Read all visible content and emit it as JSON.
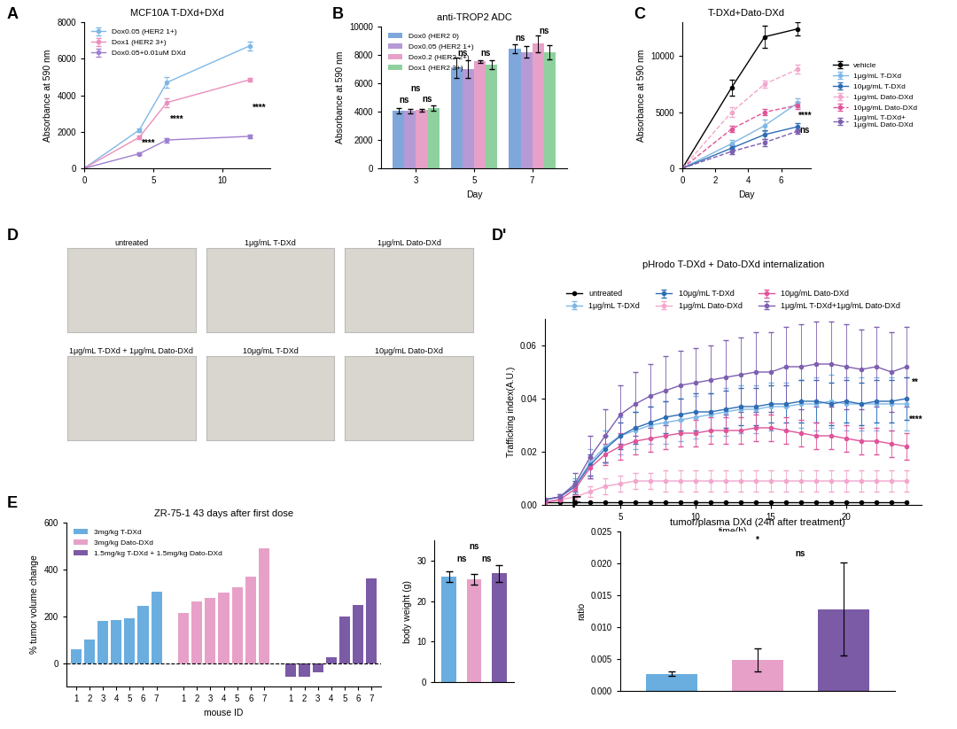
{
  "chart_data": [
    {
      "panel": "A",
      "type": "line",
      "title": "MCF10A T-DXd+DXd",
      "y_label": "Absorbance at 590 nm",
      "x": [
        0,
        4,
        6,
        12
      ],
      "xlim": [
        0,
        13.5
      ],
      "xticks": [
        0,
        5,
        10
      ],
      "ylim": [
        0,
        8000
      ],
      "yticks": [
        0,
        2000,
        4000,
        6000,
        8000
      ],
      "legend": "upper left",
      "series": [
        {
          "name": "Dox0.05 (HER2 1+)",
          "color": "#7fb8e6",
          "marker": "o",
          "line_style": "solid",
          "values": [
            0,
            2100,
            4700,
            6700
          ],
          "errors": [
            0,
            100,
            300,
            250
          ]
        },
        {
          "name": "Dox1 (HER2 3+)",
          "color": "#ea8fbd",
          "marker": "o",
          "line_style": "solid",
          "values": [
            0,
            1700,
            3600,
            4850
          ],
          "errors": [
            0,
            80,
            250,
            80
          ]
        },
        {
          "name": "Dox0.05+0.01uM DXd",
          "color": "#a07fd0",
          "marker": "o",
          "line_style": "solid",
          "values": [
            0,
            800,
            1550,
            1750
          ],
          "errors": [
            0,
            60,
            120,
            80
          ]
        }
      ],
      "annotations": [
        {
          "text": "****",
          "x": 4.7,
          "y": 1350
        },
        {
          "text": "****",
          "x": 6.7,
          "y": 2650
        },
        {
          "text": "****",
          "x": 12.7,
          "y": 3300
        }
      ]
    },
    {
      "panel": "B",
      "type": "grouped_bar",
      "title": "anti-TROP2 ADC",
      "x_label": "Day",
      "y_label": "Absorbance at 590 nm",
      "categories": [
        "3",
        "5",
        "7"
      ],
      "ylim": [
        0,
        10000
      ],
      "yticks": [
        0,
        2000,
        4000,
        6000,
        8000,
        10000
      ],
      "legend": "upper left",
      "series": [
        {
          "name": "Dox0 (HER2 0)",
          "color": "#7fa7dc",
          "values": [
            4050,
            7100,
            8450
          ],
          "errors": [
            200,
            700,
            300
          ]
        },
        {
          "name": "Dox0.05 (HER2 1+)",
          "color": "#b59ad6",
          "values": [
            4050,
            7000,
            8200
          ],
          "errors": [
            150,
            600,
            400
          ]
        },
        {
          "name": "Dox0.2 (HER2 2+)",
          "color": "#e7a1c8",
          "values": [
            4100,
            7550,
            8800
          ],
          "errors": [
            100,
            100,
            600
          ]
        },
        {
          "name": "Dox1 (HER2 3+)",
          "color": "#8fd19e",
          "values": [
            4250,
            7300,
            8200
          ],
          "errors": [
            200,
            300,
            500
          ]
        }
      ],
      "annotations": [
        {
          "text": "ns",
          "x": -0.2,
          "y": 4800
        },
        {
          "text": "ns",
          "x": 0.2,
          "y": 4900
        },
        {
          "text": "ns",
          "x": 0.0,
          "y": 5600
        },
        {
          "text": "ns",
          "x": 0.8,
          "y": 8100
        },
        {
          "text": "ns",
          "x": 1.2,
          "y": 8100
        },
        {
          "text": "ns",
          "x": 1.8,
          "y": 9200
        },
        {
          "text": "ns",
          "x": 2.2,
          "y": 9700
        }
      ]
    },
    {
      "panel": "C",
      "type": "line",
      "title": "T-DXd+Dato-DXd",
      "x_label": "Day",
      "y_label": "Absorbance at 590 nm",
      "x": [
        0,
        3,
        5,
        7
      ],
      "xlim": [
        0,
        7.8
      ],
      "xticks": [
        0,
        2,
        4,
        6
      ],
      "ylim": [
        0,
        13000
      ],
      "yticks": [
        0,
        5000,
        10000
      ],
      "legend": "right",
      "series": [
        {
          "name": "vehicle",
          "color": "#000000",
          "marker": "o",
          "line_style": "solid",
          "values": [
            0,
            7200,
            11700,
            12400
          ],
          "errors": [
            0,
            700,
            1000,
            600
          ]
        },
        {
          "name": "1μg/mL T-DXd",
          "color": "#7fb8e6",
          "marker": "o",
          "line_style": "solid",
          "values": [
            0,
            2200,
            3800,
            5800
          ],
          "errors": [
            0,
            300,
            500,
            400
          ]
        },
        {
          "name": "10μg/mL T-DXd",
          "color": "#2f6db5",
          "marker": "o",
          "line_style": "solid",
          "values": [
            0,
            1800,
            3000,
            3700
          ],
          "errors": [
            0,
            250,
            400,
            300
          ]
        },
        {
          "name": "1μg/mL Dato-DXd",
          "color": "#f2a7cc",
          "marker": "o",
          "line_style": "dashed",
          "values": [
            0,
            5000,
            7500,
            8800
          ],
          "errors": [
            0,
            400,
            300,
            400
          ]
        },
        {
          "name": "10μg/mL Dato-DXd",
          "color": "#e0559a",
          "marker": "o",
          "line_style": "dashed",
          "values": [
            0,
            3500,
            5000,
            5600
          ],
          "errors": [
            0,
            300,
            300,
            300
          ]
        },
        {
          "name": "1μg/mL T-DXd+\n1μg/mL Dato-DXd",
          "color": "#7e5fb0",
          "marker": "o",
          "line_style": "dashed",
          "values": [
            0,
            1500,
            2300,
            3300
          ],
          "errors": [
            0,
            200,
            300,
            200
          ]
        }
      ],
      "annotations": [
        {
          "text": "****",
          "x": 7.45,
          "y": 4700
        },
        {
          "text": "ns",
          "x": 7.45,
          "y": 3400
        }
      ]
    },
    {
      "panel": "D",
      "type": "images",
      "titles": [
        "untreated",
        "1μg/mL T-DXd",
        "1μg/mL Dato-DXd",
        "1μg/mL T-DXd + 1μg/mL Dato-DXd",
        "10μg/mL T-DXd",
        "10μg/mL Dato-DXd"
      ]
    },
    {
      "panel": "D'",
      "type": "line",
      "title": "pHrodo T-DXd + Dato-DXd internalization",
      "x_label": "time(h)",
      "y_label": "Trafficking index(A.U.)",
      "x": [
        0,
        1,
        2,
        3,
        4,
        5,
        6,
        7,
        8,
        9,
        10,
        11,
        12,
        13,
        14,
        15,
        16,
        17,
        18,
        19,
        20,
        21,
        22,
        23,
        24
      ],
      "xlim": [
        0,
        25
      ],
      "xticks": [
        5,
        10,
        15,
        20
      ],
      "ylim": [
        0,
        0.07
      ],
      "yticks": [
        {
          "value": 0,
          "label": "0.00"
        },
        {
          "value": 0.02,
          "label": "0.02"
        },
        {
          "value": 0.04,
          "label": "0.04"
        },
        {
          "value": 0.06,
          "label": "0.06"
        }
      ],
      "legend": "top",
      "series": [
        {
          "name": "untreated",
          "color": "#000000",
          "marker": "o",
          "line_style": "solid",
          "values": [
            0.001,
            0.001,
            0.001,
            0.001,
            0.001,
            0.001,
            0.001,
            0.001,
            0.001,
            0.001,
            0.001,
            0.001,
            0.001,
            0.001,
            0.001,
            0.001,
            0.001,
            0.001,
            0.001,
            0.001,
            0.001,
            0.001,
            0.001,
            0.001,
            0.001
          ]
        },
        {
          "name": "1μg/mL T-DXd",
          "color": "#7fb8e6",
          "marker": "o",
          "line_style": "solid",
          "values": [
            0.002,
            0.003,
            0.007,
            0.016,
            0.022,
            0.026,
            0.028,
            0.03,
            0.031,
            0.032,
            0.033,
            0.034,
            0.035,
            0.036,
            0.036,
            0.037,
            0.037,
            0.038,
            0.038,
            0.039,
            0.038,
            0.038,
            0.038,
            0.038,
            0.038
          ],
          "errors": [
            0,
            0.001,
            0.003,
            0.005,
            0.006,
            0.007,
            0.007,
            0.007,
            0.008,
            0.008,
            0.008,
            0.008,
            0.009,
            0.009,
            0.009,
            0.009,
            0.009,
            0.009,
            0.01,
            0.01,
            0.01,
            0.01,
            0.01,
            0.01,
            0.01
          ]
        },
        {
          "name": "10μg/mL T-DXd",
          "color": "#2f6db5",
          "marker": "o",
          "line_style": "solid",
          "values": [
            0.002,
            0.003,
            0.007,
            0.015,
            0.021,
            0.026,
            0.029,
            0.031,
            0.033,
            0.034,
            0.035,
            0.035,
            0.036,
            0.037,
            0.037,
            0.038,
            0.038,
            0.039,
            0.039,
            0.038,
            0.039,
            0.038,
            0.039,
            0.039,
            0.04
          ],
          "errors": [
            0,
            0.001,
            0.002,
            0.004,
            0.005,
            0.005,
            0.006,
            0.006,
            0.006,
            0.006,
            0.007,
            0.007,
            0.007,
            0.007,
            0.007,
            0.007,
            0.007,
            0.008,
            0.008,
            0.008,
            0.008,
            0.008,
            0.008,
            0.008,
            0.008
          ]
        },
        {
          "name": "1μg/mL Dato-DXd",
          "color": "#f2a7cc",
          "marker": "o",
          "line_style": "solid",
          "values": [
            0.001,
            0.002,
            0.003,
            0.005,
            0.007,
            0.008,
            0.009,
            0.009,
            0.009,
            0.009,
            0.009,
            0.009,
            0.009,
            0.009,
            0.009,
            0.009,
            0.009,
            0.009,
            0.009,
            0.009,
            0.009,
            0.009,
            0.009,
            0.009,
            0.009
          ],
          "errors": [
            0,
            0.001,
            0.001,
            0.002,
            0.003,
            0.003,
            0.003,
            0.003,
            0.004,
            0.004,
            0.004,
            0.004,
            0.004,
            0.004,
            0.004,
            0.004,
            0.004,
            0.004,
            0.004,
            0.004,
            0.004,
            0.004,
            0.004,
            0.004,
            0.004
          ]
        },
        {
          "name": "10μg/mL Dato-DXd",
          "color": "#e0559a",
          "marker": "o",
          "line_style": "solid",
          "values": [
            0.001,
            0.002,
            0.006,
            0.014,
            0.019,
            0.022,
            0.024,
            0.025,
            0.026,
            0.027,
            0.027,
            0.028,
            0.028,
            0.028,
            0.029,
            0.029,
            0.028,
            0.027,
            0.026,
            0.026,
            0.025,
            0.024,
            0.024,
            0.023,
            0.022
          ],
          "errors": [
            0,
            0.001,
            0.002,
            0.004,
            0.004,
            0.005,
            0.005,
            0.005,
            0.005,
            0.005,
            0.005,
            0.005,
            0.005,
            0.005,
            0.005,
            0.005,
            0.005,
            0.005,
            0.005,
            0.005,
            0.005,
            0.005,
            0.005,
            0.005,
            0.005
          ]
        },
        {
          "name": "1μg/mL T-DXd+1μg/mL Dato-DXd",
          "color": "#7e5fb0",
          "marker": "o",
          "line_style": "solid",
          "values": [
            0.002,
            0.003,
            0.008,
            0.018,
            0.026,
            0.034,
            0.038,
            0.041,
            0.043,
            0.045,
            0.046,
            0.047,
            0.048,
            0.049,
            0.05,
            0.05,
            0.052,
            0.052,
            0.053,
            0.053,
            0.052,
            0.051,
            0.052,
            0.05,
            0.052
          ],
          "errors": [
            0,
            0.001,
            0.004,
            0.008,
            0.01,
            0.011,
            0.012,
            0.012,
            0.013,
            0.013,
            0.013,
            0.013,
            0.014,
            0.014,
            0.015,
            0.015,
            0.015,
            0.016,
            0.016,
            0.016,
            0.016,
            0.015,
            0.015,
            0.015,
            0.015
          ]
        }
      ],
      "annotations": [
        {
          "text": "**",
          "x": 24.6,
          "y": 0.046
        },
        {
          "text": "****",
          "x": 24.6,
          "y": 0.032
        }
      ]
    },
    {
      "panel": "E",
      "type": "waterfall",
      "title": "ZR-75-1 43 days after first dose",
      "x_label": "mouse ID",
      "y_label": "% tumor volume change",
      "categories": [
        "1",
        "2",
        "3",
        "4",
        "5",
        "6",
        "7"
      ],
      "ylim": [
        -100,
        600
      ],
      "yticks": [
        0,
        200,
        400,
        600
      ],
      "legend": "upper left",
      "series": [
        {
          "name": "3mg/kg T-DXd",
          "color": "#6aaee0",
          "values": [
            60,
            100,
            180,
            185,
            190,
            245,
            305
          ]
        },
        {
          "name": "3mg/kg Dato-DXd",
          "color": "#e7a1c8",
          "values": [
            215,
            265,
            280,
            300,
            325,
            370,
            490
          ]
        },
        {
          "name": "1.5mg/kg T-DXd + 1.5mg/kg Dato-DXd",
          "color": "#7b5aa6",
          "values": [
            -60,
            -60,
            -40,
            25,
            200,
            250,
            360
          ]
        }
      ]
    },
    {
      "type": "bar",
      "y_label": "body weight (g)",
      "categories": [
        null,
        null,
        null
      ],
      "tick_labels": "y",
      "values": [
        26,
        25.3,
        26.8
      ],
      "errors": [
        1.3,
        1.3,
        2
      ],
      "colors": [
        "#6aaee0",
        "#e7a1c8",
        "#7b5aa6"
      ],
      "ylim": [
        0,
        35
      ],
      "yticks": [
        0,
        10,
        20,
        30
      ],
      "annotations": [
        {
          "text": "ns",
          "x": 1,
          "y": 33.5
        },
        {
          "text": "ns",
          "x": 0.5,
          "y": 30.5
        },
        {
          "text": "ns",
          "x": 1.5,
          "y": 30.5
        }
      ]
    },
    {
      "panel": "F",
      "type": "bar",
      "title": "tumor/plasma DXd (24h after treatment)",
      "y_label": "ratio",
      "categories": [
        null,
        null,
        null
      ],
      "tick_labels": "y",
      "values": [
        0.0027,
        0.0048,
        0.0128
      ],
      "errors": [
        0.0003,
        0.0018,
        0.0073
      ],
      "colors": [
        "#6aaee0",
        "#e7a1c8",
        "#7b5aa6"
      ],
      "ylim": [
        0,
        0.025
      ],
      "yticks": [
        {
          "value": 0,
          "label": "0.000"
        },
        {
          "value": 0.005,
          "label": "0.005"
        },
        {
          "value": 0.01,
          "label": "0.010"
        },
        {
          "value": 0.015,
          "label": "0.015"
        },
        {
          "value": 0.02,
          "label": "0.020"
        },
        {
          "value": 0.025,
          "label": "0.025"
        }
      ],
      "annotations": [
        {
          "text": "*",
          "x": 1,
          "y": 0.0237
        },
        {
          "text": "ns",
          "x": 1.5,
          "y": 0.0215
        }
      ]
    }
  ]
}
